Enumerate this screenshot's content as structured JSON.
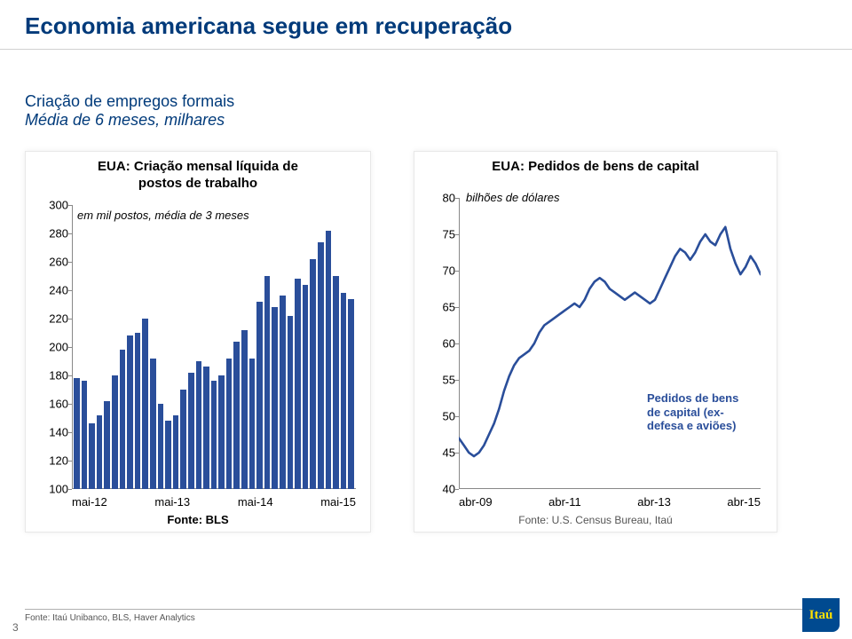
{
  "page": {
    "title": "Economia americana segue em recuperação",
    "intro_line1": "Criação de empregos formais",
    "intro_line2": "Média de 6 meses, milhares",
    "footer_source": "Fonte: Itaú Unibanco, BLS, Haver Analytics",
    "page_number": "3",
    "logo_text": "Itaú"
  },
  "left_chart": {
    "type": "bar",
    "title_line1": "EUA: Criação mensal líquida de",
    "title_line2": "postos de trabalho",
    "subtitle": "em mil postos, média de 3 meses",
    "ylim": [
      100,
      300
    ],
    "yticks": [
      100,
      120,
      140,
      160,
      180,
      200,
      220,
      240,
      260,
      280,
      300
    ],
    "x_labels": [
      "mai-12",
      "mai-13",
      "mai-14",
      "mai-15"
    ],
    "values": [
      178,
      176,
      146,
      152,
      162,
      180,
      198,
      208,
      210,
      220,
      192,
      160,
      148,
      152,
      170,
      182,
      190,
      186,
      176,
      180,
      192,
      204,
      212,
      192,
      232,
      250,
      228,
      236,
      222,
      248,
      244,
      262,
      274,
      282,
      250,
      238,
      234
    ],
    "bar_color": "#2a4e9a",
    "source_label": "Fonte: BLS",
    "source_weight": "bold"
  },
  "right_chart": {
    "type": "line",
    "title": "EUA: Pedidos de bens de capital",
    "subtitle": "bilhões de dólares",
    "ylim": [
      40,
      80
    ],
    "yticks": [
      40,
      45,
      50,
      55,
      60,
      65,
      70,
      75,
      80
    ],
    "x_labels": [
      "abr-09",
      "abr-11",
      "abr-13",
      "abr-15"
    ],
    "legend_line1": "Pedidos de bens",
    "legend_line2": "de capital (ex-",
    "legend_line3": "defesa e aviões)",
    "line_color": "#2a4e9a",
    "line_width": 2.6,
    "points": [
      [
        0,
        47
      ],
      [
        3,
        46
      ],
      [
        6,
        45
      ],
      [
        9,
        44.5
      ],
      [
        12,
        45
      ],
      [
        15,
        46
      ],
      [
        18,
        47.5
      ],
      [
        21,
        49
      ],
      [
        24,
        51
      ],
      [
        27,
        53.5
      ],
      [
        30,
        55.5
      ],
      [
        33,
        57
      ],
      [
        36,
        58
      ],
      [
        39,
        58.5
      ],
      [
        42,
        59
      ],
      [
        45,
        60
      ],
      [
        48,
        61.5
      ],
      [
        51,
        62.5
      ],
      [
        54,
        63
      ],
      [
        57,
        63.5
      ],
      [
        60,
        64
      ],
      [
        63,
        64.5
      ],
      [
        66,
        65
      ],
      [
        69,
        65.5
      ],
      [
        72,
        65
      ],
      [
        75,
        66
      ],
      [
        78,
        67.5
      ],
      [
        81,
        68.5
      ],
      [
        84,
        69
      ],
      [
        87,
        68.5
      ],
      [
        90,
        67.5
      ],
      [
        93,
        67
      ],
      [
        96,
        66.5
      ],
      [
        99,
        66
      ],
      [
        102,
        66.5
      ],
      [
        105,
        67
      ],
      [
        108,
        66.5
      ],
      [
        111,
        66
      ],
      [
        114,
        65.5
      ],
      [
        117,
        66
      ],
      [
        120,
        67.5
      ],
      [
        123,
        69
      ],
      [
        126,
        70.5
      ],
      [
        129,
        72
      ],
      [
        132,
        73
      ],
      [
        135,
        72.5
      ],
      [
        138,
        71.5
      ],
      [
        141,
        72.5
      ],
      [
        144,
        74
      ],
      [
        147,
        75
      ],
      [
        150,
        74
      ],
      [
        153,
        73.5
      ],
      [
        156,
        75
      ],
      [
        159,
        76
      ],
      [
        162,
        73
      ],
      [
        165,
        71
      ],
      [
        168,
        69.5
      ],
      [
        171,
        70.5
      ],
      [
        174,
        72
      ],
      [
        177,
        71
      ],
      [
        180,
        69.5
      ]
    ],
    "x_domain": [
      0,
      180
    ],
    "source_label": "Fonte: U.S. Census Bureau, Itaú"
  }
}
